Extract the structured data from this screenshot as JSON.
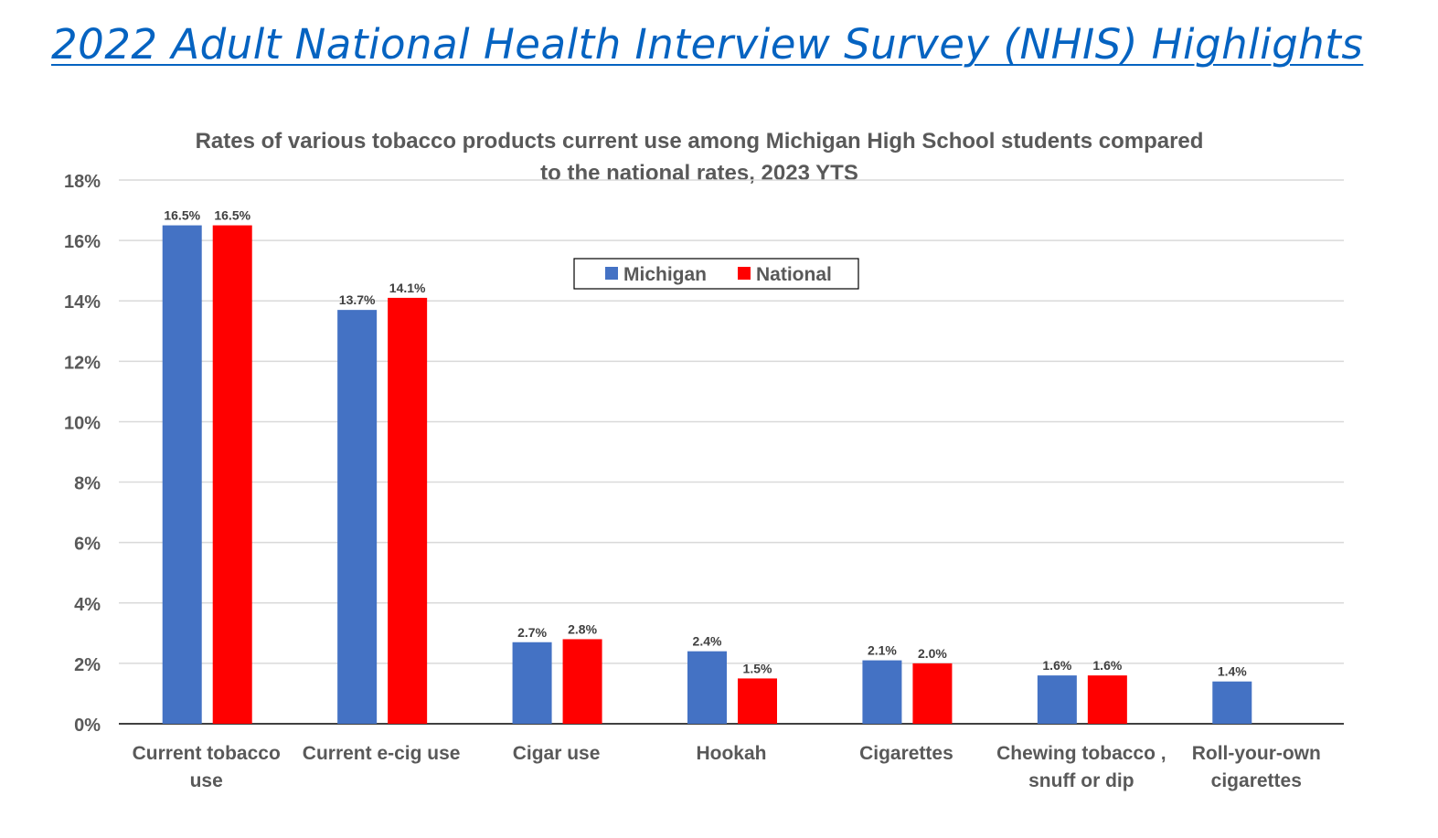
{
  "page": {
    "title": "2022 Adult National Health Interview Survey (NHIS) Highlights",
    "title_color": "#0563c1"
  },
  "chart_data": {
    "type": "bar",
    "title_lines": [
      "Rates of various tobacco products current use among Michigan High School students compared",
      "to the national rates, 2023 YTS"
    ],
    "categories": [
      [
        "Current tobacco",
        "use"
      ],
      [
        "Current e-cig use"
      ],
      [
        "Cigar use"
      ],
      [
        "Hookah"
      ],
      [
        "Cigarettes"
      ],
      [
        "Chewing tobacco ,",
        "snuff or dip"
      ],
      [
        "Roll-your-own",
        "cigarettes"
      ]
    ],
    "series": [
      {
        "name": "Michigan",
        "color": "#4472c4",
        "values": [
          16.5,
          13.7,
          2.7,
          2.4,
          2.1,
          1.6,
          1.4
        ],
        "labels": [
          "16.5%",
          "13.7%",
          "2.7%",
          "2.4%",
          "2.1%",
          "1.6%",
          "1.4%"
        ]
      },
      {
        "name": "National",
        "color": "#ff0000",
        "values": [
          16.5,
          14.1,
          2.8,
          1.5,
          2.0,
          1.6,
          null
        ],
        "labels": [
          "16.5%",
          "14.1%",
          "2.8%",
          "1.5%",
          "2.0%",
          "1.6%",
          null
        ]
      }
    ],
    "ylim": [
      0,
      18
    ],
    "yticks": [
      0,
      2,
      4,
      6,
      8,
      10,
      12,
      14,
      16,
      18
    ],
    "ytick_labels": [
      "0%",
      "2%",
      "4%",
      "6%",
      "8%",
      "10%",
      "12%",
      "14%",
      "16%",
      "18%"
    ],
    "xlabel": "",
    "ylabel": "",
    "grid": true,
    "legend": "top-center"
  }
}
